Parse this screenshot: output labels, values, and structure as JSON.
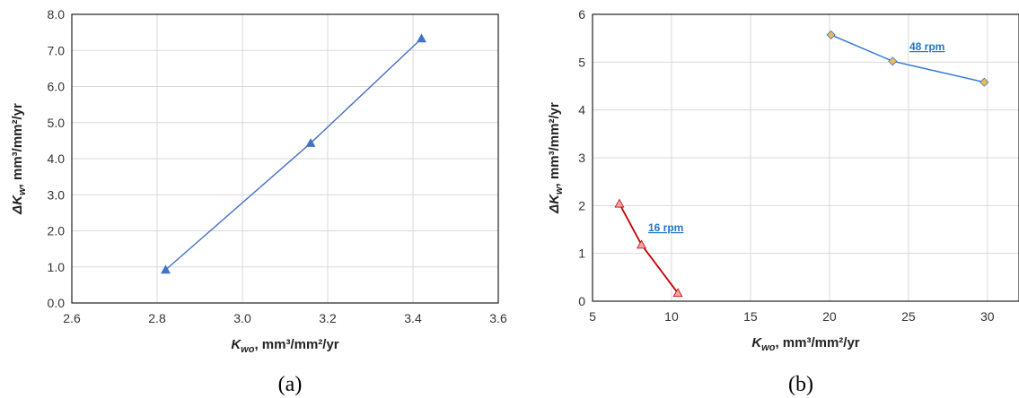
{
  "colors": {
    "series_a": "#4472C4",
    "series_16": "#C00000",
    "marker_16": "#F4A6A6",
    "series_48": "#2E75D6",
    "marker_48": "#F5B84C",
    "annotation": "#1F77C8",
    "grid": "#D9D9D9"
  },
  "chart_data": [
    {
      "panel_label": "(a)",
      "type": "line",
      "title": "",
      "xlabel": {
        "symbol": "K",
        "subscript": "wo",
        "rest": ", mm³/mm²/yr"
      },
      "ylabel": {
        "prefix": "ΔK",
        "subscript": "w",
        "rest": ", mm³/mm²/yr"
      },
      "xlim": [
        2.6,
        3.6
      ],
      "ylim": [
        0.0,
        8.0
      ],
      "x_ticks": [
        "2.6",
        "2.8",
        "3.0",
        "3.2",
        "3.4",
        "3.6"
      ],
      "y_ticks": [
        "0.0",
        "1.0",
        "2.0",
        "3.0",
        "4.0",
        "5.0",
        "6.0",
        "7.0",
        "8.0"
      ],
      "grid": true,
      "series": [
        {
          "marker": "triangle",
          "color": "#4472C4",
          "x": [
            2.82,
            3.16,
            3.42
          ],
          "y": [
            0.92,
            4.43,
            7.33
          ]
        }
      ]
    },
    {
      "panel_label": "(b)",
      "type": "line",
      "title": "",
      "xlabel": {
        "symbol": "K",
        "subscript": "wo",
        "rest": ", mm³/mm²/yr"
      },
      "ylabel": {
        "prefix": "ΔK",
        "subscript": "w",
        "rest": ", mm³/mm²/yr"
      },
      "xlim": [
        5,
        32
      ],
      "ylim": [
        0,
        6
      ],
      "x_ticks": [
        "5",
        "10",
        "15",
        "20",
        "25",
        "30"
      ],
      "y_ticks": [
        "0",
        "1",
        "2",
        "3",
        "4",
        "5",
        "6"
      ],
      "grid": true,
      "series": [
        {
          "name": "16 rpm",
          "marker": "triangle",
          "color": "#C00000",
          "marker_color": "#F4A6A6",
          "x": [
            6.7,
            8.1,
            10.4
          ],
          "y": [
            2.04,
            1.18,
            0.17
          ]
        },
        {
          "name": "48 rpm",
          "marker": "diamond",
          "color": "#2E75D6",
          "marker_color": "#F5B84C",
          "x": [
            20.1,
            24.0,
            29.8
          ],
          "y": [
            5.57,
            5.02,
            4.58
          ]
        }
      ],
      "annotations": [
        "16 rpm",
        "48 rpm"
      ]
    }
  ]
}
